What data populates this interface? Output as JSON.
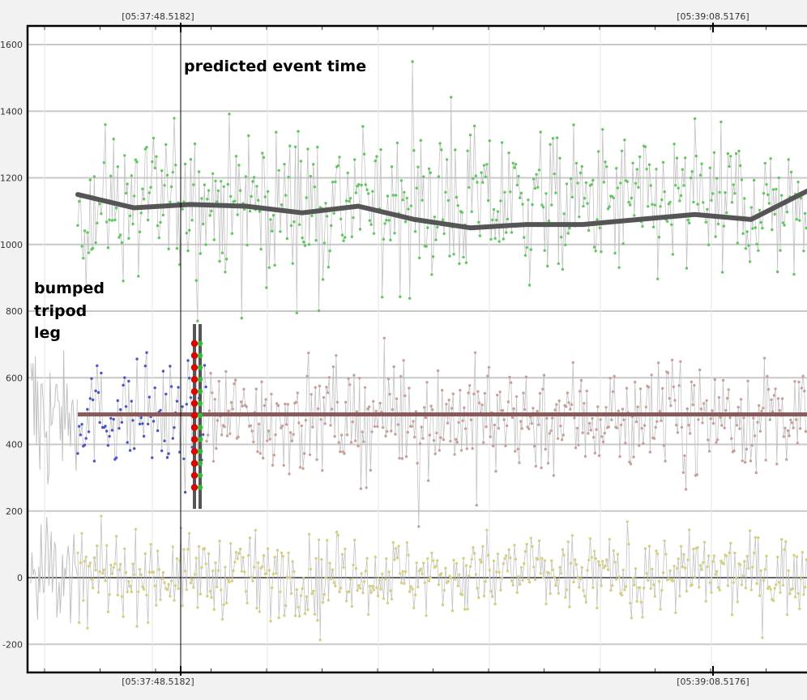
{
  "chart_data": {
    "type": "scatter",
    "title": "",
    "xlabel": "",
    "ylabel": "",
    "ylim": [
      -280,
      1665
    ],
    "y_ticks": [
      -200,
      0,
      200,
      400,
      600,
      800,
      1000,
      1200,
      1400,
      1600
    ],
    "grid": true,
    "time_markers": [
      {
        "label": "[05:37:48.5182]",
        "position": "left"
      },
      {
        "label": "[05:39:08.5176]",
        "position": "right"
      }
    ],
    "annotations": [
      {
        "text": "predicted event time"
      },
      {
        "text": "bumped"
      },
      {
        "text": "tripod"
      },
      {
        "text": "leg"
      }
    ],
    "series": [
      {
        "color": "#5fc85f",
        "mean": 1120,
        "spread": 110,
        "trend": [
          1150,
          1110,
          1120,
          1115,
          1095,
          1115,
          1075,
          1050,
          1060,
          1060,
          1075,
          1090,
          1075,
          1160
        ]
      },
      {
        "color": "#4a55c8",
        "mean": 490,
        "spread": 75
      },
      {
        "color": "#c8a096",
        "mean": 480,
        "spread": 85,
        "trend_value": 490
      },
      {
        "color": "#d6d07e",
        "mean": 10,
        "spread": 60
      }
    ],
    "colors": {
      "frame": "#000000",
      "grid": "#c8c8c8",
      "connector": "#bdbdbd",
      "trend_green": "#555555",
      "trend_brown": "#8b5a5a",
      "marker_bar": "#555555",
      "marker_red": "#e00000",
      "marker_green": "#33bb33"
    }
  }
}
